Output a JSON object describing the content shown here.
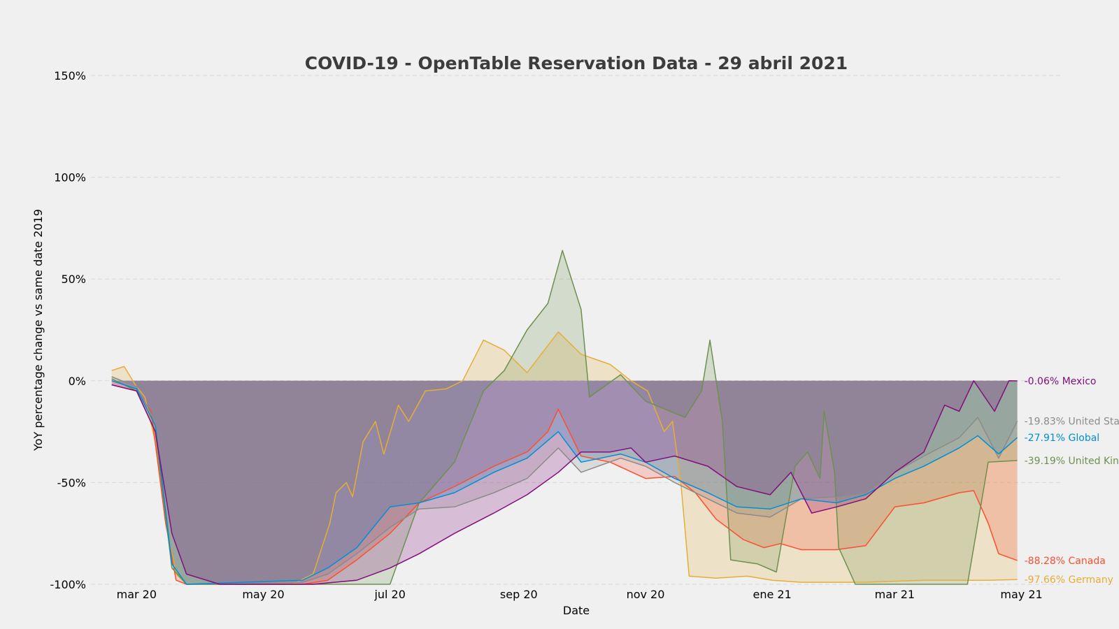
{
  "chart_data": {
    "type": "area",
    "title": "COVID-19 - OpenTable Reservation Data - 29 abril 2021",
    "xlabel": "Date",
    "ylabel": "YoY percentage change vs same date 2019",
    "x_ticks": [
      {
        "label": "mar 20",
        "date": "2020-03-01"
      },
      {
        "label": "may 20",
        "date": "2020-05-01"
      },
      {
        "label": "jul 20",
        "date": "2020-07-01"
      },
      {
        "label": "sep 20",
        "date": "2020-09-01"
      },
      {
        "label": "nov 20",
        "date": "2020-11-01"
      },
      {
        "label": "ene 21",
        "date": "2021-01-01"
      },
      {
        "label": "mar 21",
        "date": "2021-03-01"
      },
      {
        "label": "may 21",
        "date": "2021-05-01"
      }
    ],
    "y_ticks": [
      {
        "label": "150%",
        "value": 150
      },
      {
        "label": "100%",
        "value": 100
      },
      {
        "label": "50%",
        "value": 50
      },
      {
        "label": "0%",
        "value": 0
      },
      {
        "label": "-50%",
        "value": -50
      },
      {
        "label": "-100%",
        "value": -100
      }
    ],
    "xlim": [
      "2020-02-08",
      "2021-05-20"
    ],
    "ylim": [
      -100,
      150
    ],
    "grid": "horizontal dashed",
    "series": [
      {
        "name": "Germany",
        "end_label": "-97.66% Germany",
        "color": "#e5ae38",
        "points": [
          [
            "2020-02-18",
            5
          ],
          [
            "2020-02-24",
            7
          ],
          [
            "2020-03-01",
            -3
          ],
          [
            "2020-03-05",
            -8
          ],
          [
            "2020-03-10",
            -30
          ],
          [
            "2020-03-15",
            -70
          ],
          [
            "2020-03-20",
            -95
          ],
          [
            "2020-03-25",
            -100
          ],
          [
            "2020-05-15",
            -100
          ],
          [
            "2020-05-25",
            -95
          ],
          [
            "2020-06-02",
            -70
          ],
          [
            "2020-06-05",
            -55
          ],
          [
            "2020-06-10",
            -50
          ],
          [
            "2020-06-13",
            -57
          ],
          [
            "2020-06-18",
            -30
          ],
          [
            "2020-06-24",
            -20
          ],
          [
            "2020-06-28",
            -36
          ],
          [
            "2020-07-05",
            -12
          ],
          [
            "2020-07-10",
            -20
          ],
          [
            "2020-07-18",
            -5
          ],
          [
            "2020-07-28",
            -4
          ],
          [
            "2020-08-05",
            0
          ],
          [
            "2020-08-15",
            20
          ],
          [
            "2020-08-25",
            15
          ],
          [
            "2020-09-05",
            4
          ],
          [
            "2020-09-20",
            24
          ],
          [
            "2020-10-01",
            13
          ],
          [
            "2020-10-15",
            8
          ],
          [
            "2020-10-25",
            0
          ],
          [
            "2020-11-02",
            -5
          ],
          [
            "2020-11-10",
            -25
          ],
          [
            "2020-11-14",
            -20
          ],
          [
            "2020-11-18",
            -50
          ],
          [
            "2020-11-22",
            -96
          ],
          [
            "2020-12-05",
            -97
          ],
          [
            "2020-12-20",
            -96
          ],
          [
            "2021-01-01",
            -98
          ],
          [
            "2021-01-15",
            -99
          ],
          [
            "2021-02-15",
            -99
          ],
          [
            "2021-03-15",
            -98
          ],
          [
            "2021-04-15",
            -98
          ],
          [
            "2021-04-29",
            -97.66
          ]
        ]
      },
      {
        "name": "Canada",
        "end_label": "-88.28% Canada",
        "color": "#fc4f30",
        "points": [
          [
            "2020-02-18",
            -2
          ],
          [
            "2020-03-01",
            -5
          ],
          [
            "2020-03-08",
            -15
          ],
          [
            "2020-03-15",
            -70
          ],
          [
            "2020-03-20",
            -98
          ],
          [
            "2020-03-25",
            -100
          ],
          [
            "2020-05-20",
            -100
          ],
          [
            "2020-06-01",
            -98
          ],
          [
            "2020-06-15",
            -88
          ],
          [
            "2020-07-01",
            -75
          ],
          [
            "2020-07-15",
            -60
          ],
          [
            "2020-08-01",
            -52
          ],
          [
            "2020-08-20",
            -42
          ],
          [
            "2020-09-05",
            -35
          ],
          [
            "2020-09-15",
            -25
          ],
          [
            "2020-09-20",
            -14
          ],
          [
            "2020-10-01",
            -37
          ],
          [
            "2020-10-15",
            -40
          ],
          [
            "2020-11-01",
            -48
          ],
          [
            "2020-11-15",
            -47
          ],
          [
            "2020-11-25",
            -55
          ],
          [
            "2020-12-05",
            -68
          ],
          [
            "2020-12-18",
            -78
          ],
          [
            "2020-12-28",
            -82
          ],
          [
            "2021-01-05",
            -80
          ],
          [
            "2021-01-15",
            -83
          ],
          [
            "2021-02-01",
            -83
          ],
          [
            "2021-02-15",
            -81
          ],
          [
            "2021-03-01",
            -62
          ],
          [
            "2021-03-15",
            -60
          ],
          [
            "2021-04-01",
            -55
          ],
          [
            "2021-04-08",
            -54
          ],
          [
            "2021-04-15",
            -70
          ],
          [
            "2021-04-20",
            -85
          ],
          [
            "2021-04-29",
            -88.28
          ]
        ]
      },
      {
        "name": "United Kingdom",
        "end_label": "-39.19% United Kin",
        "color": "#6d904f",
        "points": [
          [
            "2020-02-18",
            1
          ],
          [
            "2020-03-01",
            -5
          ],
          [
            "2020-03-10",
            -25
          ],
          [
            "2020-03-18",
            -92
          ],
          [
            "2020-03-25",
            -100
          ],
          [
            "2020-07-01",
            -100
          ],
          [
            "2020-07-15",
            -60
          ],
          [
            "2020-08-01",
            -40
          ],
          [
            "2020-08-15",
            -5
          ],
          [
            "2020-08-25",
            5
          ],
          [
            "2020-09-05",
            25
          ],
          [
            "2020-09-15",
            38
          ],
          [
            "2020-09-22",
            64
          ],
          [
            "2020-10-01",
            35
          ],
          [
            "2020-10-05",
            -8
          ],
          [
            "2020-10-20",
            3
          ],
          [
            "2020-11-01",
            -10
          ],
          [
            "2020-11-20",
            -18
          ],
          [
            "2020-11-28",
            -5
          ],
          [
            "2020-12-02",
            20
          ],
          [
            "2020-12-08",
            -20
          ],
          [
            "2020-12-12",
            -88
          ],
          [
            "2020-12-25",
            -90
          ],
          [
            "2021-01-03",
            -94
          ],
          [
            "2021-01-12",
            -42
          ],
          [
            "2021-01-18",
            -35
          ],
          [
            "2021-01-24",
            -48
          ],
          [
            "2021-01-26",
            -15
          ],
          [
            "2021-01-31",
            -45
          ],
          [
            "2021-02-02",
            -82
          ],
          [
            "2021-02-10",
            -100
          ],
          [
            "2021-04-05",
            -100
          ],
          [
            "2021-04-15",
            -40
          ],
          [
            "2021-04-29",
            -39.19
          ]
        ]
      },
      {
        "name": "United States",
        "end_label": "-19.83% United Sta",
        "color": "#8b8b8b",
        "points": [
          [
            "2020-02-18",
            2
          ],
          [
            "2020-03-01",
            -3
          ],
          [
            "2020-03-10",
            -20
          ],
          [
            "2020-03-18",
            -90
          ],
          [
            "2020-03-25",
            -100
          ],
          [
            "2020-05-20",
            -99
          ],
          [
            "2020-06-01",
            -95
          ],
          [
            "2020-06-15",
            -85
          ],
          [
            "2020-07-01",
            -72
          ],
          [
            "2020-07-15",
            -63
          ],
          [
            "2020-08-01",
            -62
          ],
          [
            "2020-08-20",
            -55
          ],
          [
            "2020-09-05",
            -48
          ],
          [
            "2020-09-20",
            -33
          ],
          [
            "2020-10-01",
            -45
          ],
          [
            "2020-10-20",
            -38
          ],
          [
            "2020-11-01",
            -42
          ],
          [
            "2020-11-15",
            -50
          ],
          [
            "2020-12-01",
            -58
          ],
          [
            "2020-12-15",
            -65
          ],
          [
            "2020-12-31",
            -67
          ],
          [
            "2021-01-15",
            -58
          ],
          [
            "2021-02-01",
            -57
          ],
          [
            "2021-02-15",
            -55
          ],
          [
            "2021-03-01",
            -45
          ],
          [
            "2021-03-15",
            -37
          ],
          [
            "2021-04-01",
            -28
          ],
          [
            "2021-04-10",
            -18
          ],
          [
            "2021-04-20",
            -38
          ],
          [
            "2021-04-29",
            -19.83
          ]
        ]
      },
      {
        "name": "Global",
        "end_label": "-27.91% Global",
        "color": "#008fd5",
        "points": [
          [
            "2020-02-18",
            0
          ],
          [
            "2020-03-01",
            -4
          ],
          [
            "2020-03-10",
            -22
          ],
          [
            "2020-03-18",
            -90
          ],
          [
            "2020-03-25",
            -100
          ],
          [
            "2020-05-20",
            -98
          ],
          [
            "2020-06-01",
            -92
          ],
          [
            "2020-06-15",
            -82
          ],
          [
            "2020-07-01",
            -62
          ],
          [
            "2020-07-15",
            -60
          ],
          [
            "2020-08-01",
            -55
          ],
          [
            "2020-08-20",
            -45
          ],
          [
            "2020-09-05",
            -38
          ],
          [
            "2020-09-20",
            -25
          ],
          [
            "2020-10-01",
            -40
          ],
          [
            "2020-10-20",
            -36
          ],
          [
            "2020-11-01",
            -40
          ],
          [
            "2020-11-15",
            -48
          ],
          [
            "2020-12-01",
            -55
          ],
          [
            "2020-12-15",
            -62
          ],
          [
            "2020-12-31",
            -63
          ],
          [
            "2021-01-15",
            -58
          ],
          [
            "2021-02-01",
            -60
          ],
          [
            "2021-02-15",
            -56
          ],
          [
            "2021-03-01",
            -48
          ],
          [
            "2021-03-15",
            -42
          ],
          [
            "2021-04-01",
            -33
          ],
          [
            "2021-04-10",
            -27
          ],
          [
            "2021-04-20",
            -36
          ],
          [
            "2021-04-29",
            -27.91
          ]
        ]
      },
      {
        "name": "Mexico",
        "end_label": "-0.06% Mexico",
        "color": "#810f7c",
        "points": [
          [
            "2020-02-18",
            -2
          ],
          [
            "2020-03-01",
            -5
          ],
          [
            "2020-03-10",
            -25
          ],
          [
            "2020-03-18",
            -75
          ],
          [
            "2020-03-25",
            -95
          ],
          [
            "2020-04-10",
            -100
          ],
          [
            "2020-05-25",
            -100
          ],
          [
            "2020-06-15",
            -98
          ],
          [
            "2020-07-01",
            -92
          ],
          [
            "2020-07-15",
            -85
          ],
          [
            "2020-08-01",
            -75
          ],
          [
            "2020-08-20",
            -65
          ],
          [
            "2020-09-05",
            -56
          ],
          [
            "2020-09-20",
            -45
          ],
          [
            "2020-10-01",
            -35
          ],
          [
            "2020-10-15",
            -35
          ],
          [
            "2020-10-25",
            -33
          ],
          [
            "2020-11-01",
            -40
          ],
          [
            "2020-11-15",
            -37
          ],
          [
            "2020-12-01",
            -42
          ],
          [
            "2020-12-15",
            -52
          ],
          [
            "2020-12-31",
            -56
          ],
          [
            "2021-01-10",
            -45
          ],
          [
            "2021-01-20",
            -65
          ],
          [
            "2021-02-01",
            -62
          ],
          [
            "2021-02-15",
            -58
          ],
          [
            "2021-03-01",
            -45
          ],
          [
            "2021-03-15",
            -35
          ],
          [
            "2021-03-25",
            -12
          ],
          [
            "2021-04-01",
            -15
          ],
          [
            "2021-04-08",
            0
          ],
          [
            "2021-04-18",
            -15
          ],
          [
            "2021-04-25",
            0
          ],
          [
            "2021-04-29",
            -0.06
          ]
        ]
      }
    ]
  }
}
